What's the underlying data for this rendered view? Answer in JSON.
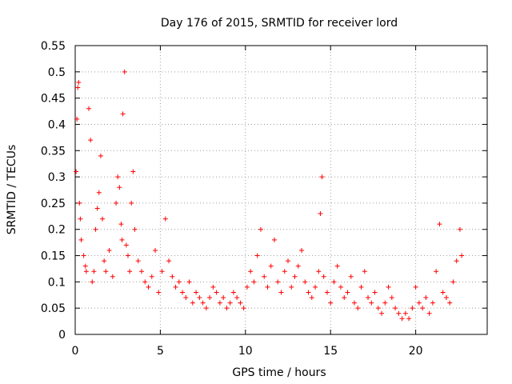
{
  "chart_data": {
    "type": "scatter",
    "title": "Day 176 of 2015, SRMTID for receiver lord",
    "xlabel": "GPS time / hours",
    "ylabel": "SRMTID / TECUs",
    "xlim": [
      0,
      24.2
    ],
    "ylim": [
      0,
      0.55
    ],
    "xticks": [
      0,
      5,
      10,
      15,
      20
    ],
    "xtick_labels": [
      "0",
      "5",
      "10",
      "15",
      "20"
    ],
    "yticks": [
      0,
      0.05,
      0.1,
      0.15,
      0.2,
      0.25,
      0.3,
      0.35,
      0.4,
      0.45,
      0.5,
      0.55
    ],
    "ytick_labels": [
      "0",
      "0.05",
      "0.1",
      "0.15",
      "0.2",
      "0.25",
      "0.3",
      "0.35",
      "0.4",
      "0.45",
      "0.5",
      "0.55"
    ],
    "grid": true,
    "marker": "plus",
    "color": "#ff0000",
    "series": [
      {
        "name": "SRMTID",
        "x": [
          0.05,
          0.1,
          0.15,
          0.2,
          0.25,
          0.3,
          0.35,
          0.5,
          0.6,
          0.65,
          0.8,
          0.9,
          1.0,
          1.1,
          1.2,
          1.3,
          1.4,
          1.5,
          1.6,
          1.7,
          1.8,
          2.0,
          2.2,
          2.4,
          2.5,
          2.6,
          2.7,
          2.75,
          2.8,
          2.9,
          3.0,
          3.1,
          3.2,
          3.3,
          3.4,
          3.5,
          3.7,
          3.9,
          4.1,
          4.3,
          4.5,
          4.7,
          4.9,
          5.1,
          5.3,
          5.5,
          5.7,
          5.9,
          6.1,
          6.3,
          6.5,
          6.7,
          6.9,
          7.1,
          7.3,
          7.5,
          7.7,
          7.9,
          8.1,
          8.3,
          8.5,
          8.7,
          8.9,
          9.1,
          9.3,
          9.5,
          9.7,
          9.9,
          10.1,
          10.3,
          10.5,
          10.7,
          10.9,
          11.1,
          11.3,
          11.5,
          11.7,
          11.9,
          12.1,
          12.3,
          12.5,
          12.7,
          12.9,
          13.1,
          13.3,
          13.5,
          13.7,
          13.9,
          14.1,
          14.3,
          14.4,
          14.5,
          14.6,
          14.8,
          15.0,
          15.2,
          15.4,
          15.6,
          15.8,
          16.0,
          16.2,
          16.4,
          16.6,
          16.8,
          17.0,
          17.2,
          17.4,
          17.6,
          17.8,
          18.0,
          18.2,
          18.4,
          18.6,
          18.8,
          19.0,
          19.2,
          19.4,
          19.6,
          19.8,
          20.0,
          20.2,
          20.4,
          20.6,
          20.8,
          21.0,
          21.2,
          21.4,
          21.6,
          21.8,
          22.0,
          22.2,
          22.4,
          22.6,
          22.7
        ],
        "y": [
          0.31,
          0.41,
          0.47,
          0.48,
          0.25,
          0.22,
          0.18,
          0.15,
          0.13,
          0.12,
          0.43,
          0.37,
          0.1,
          0.12,
          0.2,
          0.24,
          0.27,
          0.34,
          0.22,
          0.14,
          0.12,
          0.16,
          0.11,
          0.25,
          0.3,
          0.28,
          0.21,
          0.18,
          0.42,
          0.5,
          0.17,
          0.15,
          0.12,
          0.25,
          0.31,
          0.2,
          0.14,
          0.12,
          0.1,
          0.09,
          0.11,
          0.16,
          0.08,
          0.12,
          0.22,
          0.14,
          0.11,
          0.09,
          0.1,
          0.08,
          0.07,
          0.1,
          0.06,
          0.08,
          0.07,
          0.06,
          0.05,
          0.07,
          0.09,
          0.08,
          0.06,
          0.07,
          0.05,
          0.06,
          0.08,
          0.07,
          0.06,
          0.05,
          0.09,
          0.12,
          0.1,
          0.15,
          0.2,
          0.11,
          0.09,
          0.13,
          0.18,
          0.1,
          0.08,
          0.12,
          0.14,
          0.09,
          0.11,
          0.13,
          0.16,
          0.1,
          0.08,
          0.07,
          0.09,
          0.12,
          0.23,
          0.3,
          0.11,
          0.08,
          0.06,
          0.1,
          0.13,
          0.09,
          0.07,
          0.08,
          0.11,
          0.06,
          0.05,
          0.09,
          0.12,
          0.07,
          0.06,
          0.08,
          0.05,
          0.04,
          0.06,
          0.09,
          0.07,
          0.05,
          0.04,
          0.03,
          0.04,
          0.03,
          0.05,
          0.09,
          0.06,
          0.05,
          0.07,
          0.04,
          0.06,
          0.12,
          0.21,
          0.08,
          0.07,
          0.06,
          0.1,
          0.14,
          0.2,
          0.15
        ]
      }
    ]
  }
}
